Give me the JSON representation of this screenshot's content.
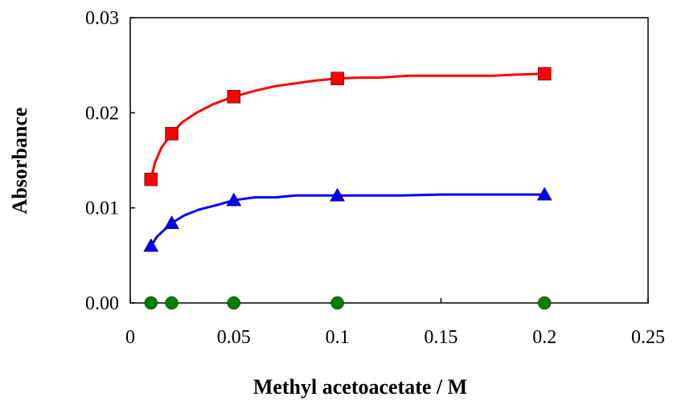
{
  "chart_data": {
    "type": "scatter",
    "title": "",
    "xlabel": "Methyl acetoacetate / M",
    "ylabel": "Absorbance",
    "xlim": [
      0,
      0.25
    ],
    "ylim": [
      0,
      0.03
    ],
    "x_ticks": [
      "0",
      "0.05",
      "0.1",
      "0.15",
      "0.2",
      "0.25"
    ],
    "y_ticks": [
      "0.00",
      "0.01",
      "0.02",
      "0.03"
    ],
    "grid": false,
    "legend": "none",
    "series": [
      {
        "marker": "square",
        "color": "#ff0000",
        "points": [
          [
            0.01,
            0.013
          ],
          [
            0.02,
            0.0178
          ],
          [
            0.05,
            0.0217
          ],
          [
            0.1,
            0.0236
          ],
          [
            0.2,
            0.0241
          ]
        ],
        "fit": [
          [
            0.01,
            0.013
          ],
          [
            0.012,
            0.0148
          ],
          [
            0.015,
            0.0163
          ],
          [
            0.02,
            0.0178
          ],
          [
            0.025,
            0.019
          ],
          [
            0.032,
            0.02
          ],
          [
            0.04,
            0.0209
          ],
          [
            0.05,
            0.0217
          ],
          [
            0.06,
            0.0223
          ],
          [
            0.07,
            0.0228
          ],
          [
            0.08,
            0.0231
          ],
          [
            0.09,
            0.0234
          ],
          [
            0.1,
            0.0236
          ],
          [
            0.11,
            0.0237
          ],
          [
            0.12,
            0.0237
          ],
          [
            0.135,
            0.0239
          ],
          [
            0.15,
            0.0239
          ],
          [
            0.175,
            0.0239
          ],
          [
            0.185,
            0.024
          ],
          [
            0.2,
            0.0241
          ]
        ]
      },
      {
        "marker": "triangle",
        "color": "#0000ff",
        "points": [
          [
            0.01,
            0.006
          ],
          [
            0.02,
            0.0084
          ],
          [
            0.05,
            0.0108
          ],
          [
            0.1,
            0.0113
          ],
          [
            0.2,
            0.0114
          ]
        ],
        "fit": [
          [
            0.01,
            0.006
          ],
          [
            0.013,
            0.007
          ],
          [
            0.016,
            0.0076
          ],
          [
            0.02,
            0.0084
          ],
          [
            0.026,
            0.0092
          ],
          [
            0.033,
            0.0098
          ],
          [
            0.042,
            0.0103
          ],
          [
            0.05,
            0.0108
          ],
          [
            0.06,
            0.0111
          ],
          [
            0.07,
            0.0111
          ],
          [
            0.08,
            0.0113
          ],
          [
            0.1,
            0.0113
          ],
          [
            0.13,
            0.0113
          ],
          [
            0.15,
            0.0114
          ],
          [
            0.2,
            0.0114
          ]
        ]
      },
      {
        "marker": "circle",
        "color": "#008000",
        "points": [
          [
            0.01,
            0.0
          ],
          [
            0.02,
            0.0
          ],
          [
            0.05,
            0.0
          ],
          [
            0.1,
            0.0
          ],
          [
            0.2,
            0.0
          ]
        ]
      }
    ]
  }
}
